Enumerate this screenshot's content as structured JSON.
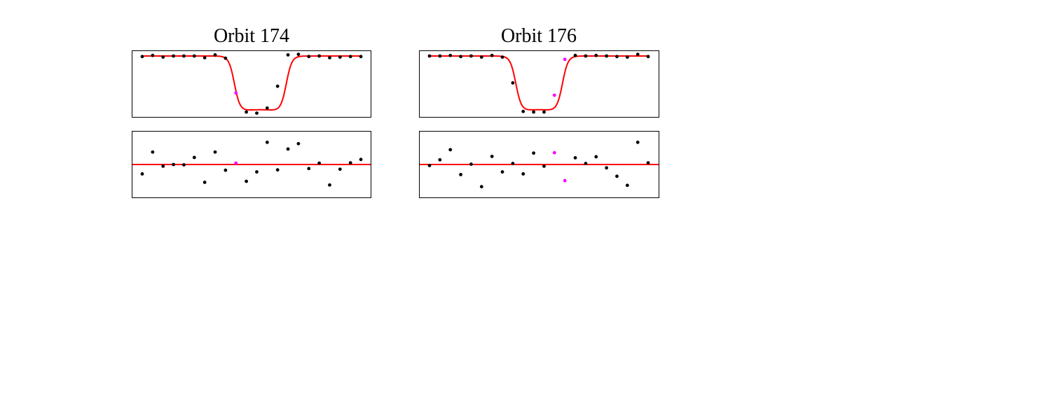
{
  "colors": {
    "model": "#ff0000",
    "point": "#000000",
    "highlight": "#ff00ff",
    "frame": "#000000"
  },
  "chart_data": [
    {
      "type": "scatter",
      "title": "Orbit 174",
      "xlabel": "",
      "ylabel": "",
      "grid": false,
      "panels": [
        {
          "name": "light-curve",
          "ylim": [
            -0.1,
            1.1
          ],
          "model": {
            "ingress_center": 8.86,
            "egress_center": 13.83,
            "width": 0.45,
            "depth": 1.0,
            "rounding": 0.04
          },
          "series": [
            {
              "name": "data",
              "x": [
                0,
                1,
                2,
                3,
                4,
                5,
                6,
                7,
                8,
                10,
                11,
                12,
                13,
                14,
                15,
                16,
                17,
                18,
                19,
                20,
                21
              ],
              "y": [
                0.99,
                1.01,
                0.98,
                1.0,
                1.0,
                1.0,
                0.97,
                1.02,
                0.96,
                0.0,
                -0.02,
                0.07,
                0.46,
                1.02,
                1.03,
                0.99,
                1.0,
                0.97,
                0.98,
                0.99,
                0.99
              ]
            },
            {
              "name": "highlighted",
              "x": [
                9
              ],
              "y": [
                0.34
              ]
            }
          ]
        },
        {
          "name": "residuals",
          "ylim": [
            -1.0,
            1.0
          ],
          "zero_line": 0,
          "series": [
            {
              "name": "data",
              "x": [
                0,
                1,
                2,
                3,
                4,
                5,
                6,
                7,
                8,
                10,
                11,
                12,
                13,
                14,
                15,
                16,
                17,
                18,
                19,
                20,
                21
              ],
              "y": [
                -0.28,
                0.37,
                -0.05,
                0.0,
                -0.01,
                0.21,
                -0.53,
                0.37,
                -0.17,
                -0.5,
                -0.22,
                0.66,
                -0.16,
                0.46,
                0.62,
                -0.12,
                0.04,
                -0.61,
                -0.14,
                0.05,
                0.15
              ]
            },
            {
              "name": "highlighted",
              "x": [
                9
              ],
              "y": [
                0.04
              ]
            }
          ]
        }
      ]
    },
    {
      "type": "scatter",
      "title": "Orbit 176",
      "xlabel": "",
      "ylabel": "",
      "grid": false,
      "panels": [
        {
          "name": "light-curve",
          "ylim": [
            -0.1,
            1.1
          ],
          "model": {
            "ingress_center": 8.3,
            "egress_center": 12.76,
            "width": 0.45,
            "depth": 1.0,
            "rounding": 0.04
          },
          "series": [
            {
              "name": "data",
              "x": [
                0,
                1,
                2,
                3,
                4,
                5,
                6,
                7,
                8,
                9,
                10,
                11,
                14,
                15,
                16,
                17,
                18,
                19,
                20,
                21
              ],
              "y": [
                1.0,
                1.0,
                1.01,
                0.99,
                1.0,
                0.98,
                1.01,
                0.98,
                0.52,
                0.01,
                0.0,
                0.0,
                1.01,
                1.0,
                1.01,
                1.0,
                0.99,
                0.98,
                1.03,
                0.99
              ]
            },
            {
              "name": "highlighted",
              "x": [
                12,
                13
              ],
              "y": [
                0.3,
                0.94
              ]
            }
          ]
        },
        {
          "name": "residuals",
          "ylim": [
            -1.0,
            1.0
          ],
          "zero_line": 0,
          "series": [
            {
              "name": "data",
              "x": [
                0,
                1,
                2,
                3,
                4,
                5,
                6,
                7,
                8,
                9,
                10,
                11,
                14,
                15,
                16,
                17,
                18,
                19,
                20,
                21
              ],
              "y": [
                -0.03,
                0.14,
                0.44,
                -0.3,
                0.01,
                -0.66,
                0.24,
                -0.22,
                0.03,
                -0.28,
                0.34,
                -0.05,
                0.2,
                0.03,
                0.23,
                -0.1,
                -0.35,
                -0.62,
                0.66,
                0.05
              ]
            },
            {
              "name": "highlighted",
              "x": [
                12,
                13
              ],
              "y": [
                0.35,
                -0.48
              ]
            }
          ]
        }
      ]
    }
  ]
}
